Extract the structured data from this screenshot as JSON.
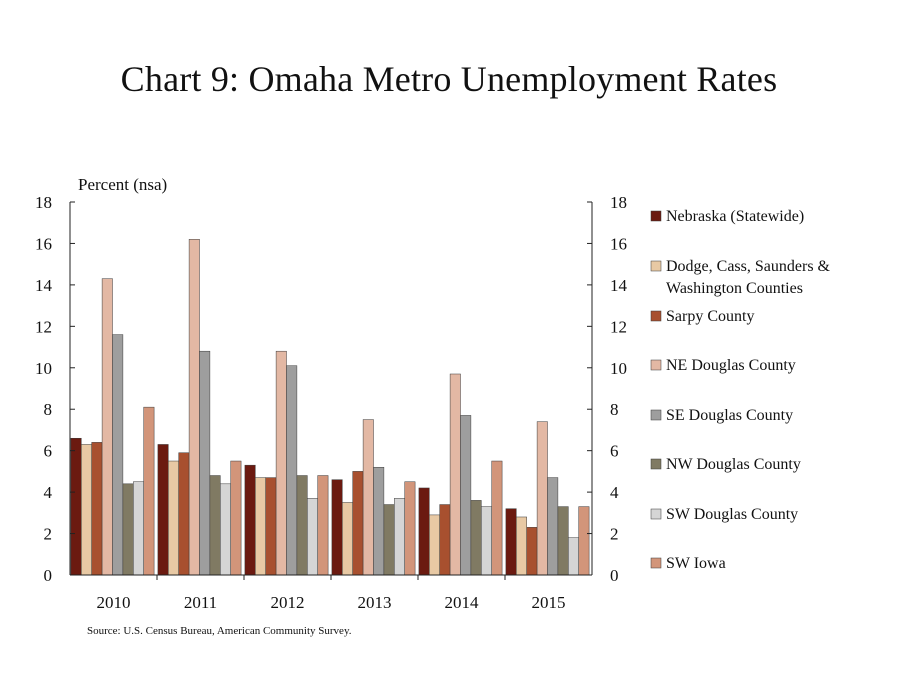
{
  "chart_data": {
    "type": "bar",
    "title": "Chart 9: Omaha Metro Unemployment Rates",
    "ylabel": "Percent (nsa)",
    "xlabel": "",
    "ylim": [
      0,
      18
    ],
    "yticks": [
      0,
      2,
      4,
      6,
      8,
      10,
      12,
      14,
      16,
      18
    ],
    "grid": false,
    "legend_position": "right",
    "categories": [
      "2010",
      "2011",
      "2012",
      "2013",
      "2014",
      "2015"
    ],
    "series": [
      {
        "name": "Nebraska (Statewide)",
        "color": "#6b1a10",
        "values": [
          6.6,
          6.3,
          5.3,
          4.6,
          4.2,
          3.2
        ]
      },
      {
        "name": "Dodge, Cass, Saunders & Washington Counties",
        "color": "#e8c9a4",
        "values": [
          6.3,
          5.5,
          4.7,
          3.5,
          2.9,
          2.8
        ]
      },
      {
        "name": "Sarpy County",
        "color": "#a8502f",
        "values": [
          6.4,
          5.9,
          4.7,
          5.0,
          3.4,
          2.3
        ]
      },
      {
        "name": "NE Douglas County",
        "color": "#e3b8a4",
        "values": [
          14.3,
          16.2,
          10.8,
          7.5,
          9.7,
          7.4
        ]
      },
      {
        "name": "SE Douglas County",
        "color": "#9e9e9e",
        "values": [
          11.6,
          10.8,
          10.1,
          5.2,
          7.7,
          4.7
        ]
      },
      {
        "name": "NW Douglas County",
        "color": "#807a63",
        "values": [
          4.4,
          4.8,
          4.8,
          3.4,
          3.6,
          3.3
        ]
      },
      {
        "name": "SW Douglas County",
        "color": "#d5d5d5",
        "values": [
          4.5,
          4.4,
          3.7,
          3.7,
          3.3,
          1.8
        ]
      },
      {
        "name": "SW Iowa",
        "color": "#d2957a",
        "values": [
          8.1,
          5.5,
          4.8,
          4.5,
          5.5,
          3.3
        ]
      }
    ],
    "source": "Source: U.S. Census Bureau, American Community Survey."
  }
}
